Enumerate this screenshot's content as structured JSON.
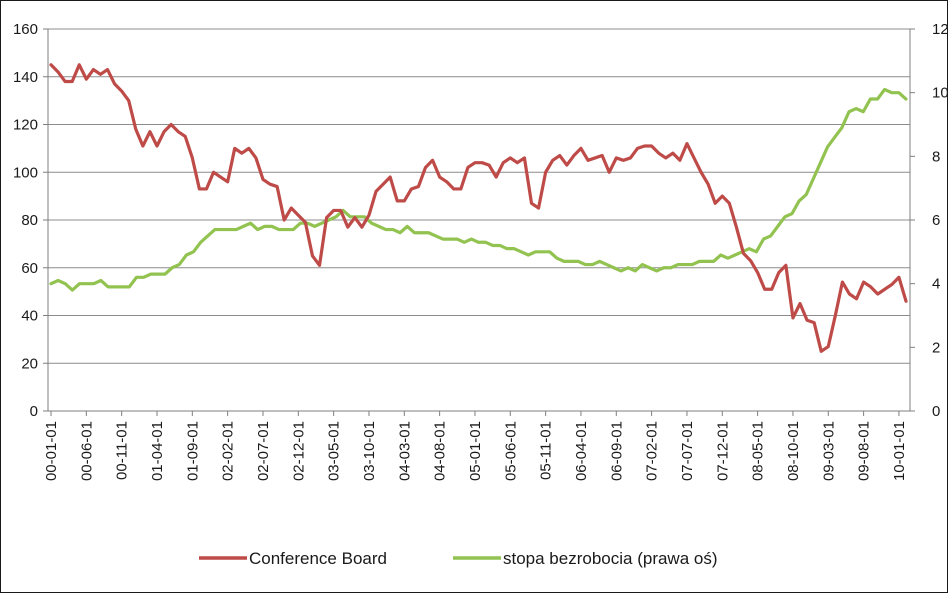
{
  "chart_data": {
    "type": "line",
    "title": "",
    "xlabel": "",
    "ylabel": "",
    "y2label": "",
    "ylim": [
      0,
      160
    ],
    "y2lim": [
      0,
      12
    ],
    "y_ticks": [
      "0",
      "20",
      "40",
      "60",
      "80",
      "100",
      "120",
      "140",
      "160"
    ],
    "y2_ticks": [
      "0",
      "2",
      "4",
      "6",
      "8",
      "10",
      "12"
    ],
    "x_tick_labels": [
      "00-01-01",
      "00-06-01",
      "00-11-01",
      "01-04-01",
      "01-09-01",
      "02-02-01",
      "02-07-01",
      "02-12-01",
      "03-05-01",
      "03-10-01",
      "04-03-01",
      "04-08-01",
      "05-01-01",
      "05-06-01",
      "05-11-01",
      "06-04-01",
      "06-09-01",
      "07-02-01",
      "07-07-01",
      "07-12-01",
      "08-05-01",
      "08-10-01",
      "09-03-01",
      "09-08-01",
      "10-01-01"
    ],
    "x_start": "2000-01",
    "x_end": "2010-02",
    "grid": true,
    "legend_position": "bottom",
    "series": [
      {
        "name": "Conference Board",
        "axis": "left",
        "color": "#be4b48",
        "values": [
          145,
          142,
          138,
          138,
          145,
          139,
          143,
          141,
          143,
          137,
          134,
          130,
          118,
          111,
          117,
          111,
          117,
          120,
          117,
          115,
          106,
          93,
          93,
          100,
          98,
          96,
          110,
          108,
          110,
          106,
          97,
          95,
          94,
          80,
          85,
          82,
          79,
          65,
          61,
          81,
          84,
          84,
          77,
          81,
          77,
          82,
          92,
          95,
          98,
          88,
          88,
          93,
          94,
          102,
          105,
          98,
          96,
          93,
          93,
          102,
          104,
          104,
          103,
          98,
          104,
          106,
          104,
          106,
          87,
          85,
          100,
          105,
          107,
          103,
          107,
          110,
          105,
          106,
          107,
          100,
          106,
          105,
          106,
          110,
          111,
          111,
          108,
          106,
          108,
          105,
          112,
          106,
          100,
          95,
          87,
          90,
          87,
          77,
          66,
          63,
          58,
          51,
          51,
          58,
          61,
          39,
          45,
          38,
          37,
          25,
          27,
          40,
          54,
          49,
          47,
          54,
          52,
          49,
          51,
          53,
          56,
          46
        ]
      },
      {
        "name": "stopa bezrobocia (prawa oś)",
        "axis": "right",
        "color": "#92c350",
        "values": [
          4.0,
          4.1,
          4.0,
          3.8,
          4.0,
          4.0,
          4.0,
          4.1,
          3.9,
          3.9,
          3.9,
          3.9,
          4.2,
          4.2,
          4.3,
          4.3,
          4.3,
          4.5,
          4.6,
          4.9,
          5.0,
          5.3,
          5.5,
          5.7,
          5.7,
          5.7,
          5.7,
          5.8,
          5.9,
          5.7,
          5.8,
          5.8,
          5.7,
          5.7,
          5.7,
          5.9,
          5.9,
          5.8,
          5.9,
          6.0,
          6.1,
          6.3,
          6.1,
          6.1,
          6.1,
          5.9,
          5.8,
          5.7,
          5.7,
          5.6,
          5.8,
          5.6,
          5.6,
          5.6,
          5.5,
          5.4,
          5.4,
          5.4,
          5.3,
          5.4,
          5.3,
          5.3,
          5.2,
          5.2,
          5.1,
          5.1,
          5.0,
          4.9,
          5.0,
          5.0,
          5.0,
          4.8,
          4.7,
          4.7,
          4.7,
          4.6,
          4.6,
          4.7,
          4.6,
          4.5,
          4.4,
          4.5,
          4.4,
          4.6,
          4.5,
          4.4,
          4.5,
          4.5,
          4.6,
          4.6,
          4.6,
          4.7,
          4.7,
          4.7,
          4.9,
          4.8,
          4.9,
          5.0,
          5.1,
          5.0,
          5.4,
          5.5,
          5.8,
          6.1,
          6.2,
          6.6,
          6.8,
          7.3,
          7.8,
          8.3,
          8.6,
          8.9,
          9.4,
          9.5,
          9.4,
          9.8,
          9.8,
          10.1,
          10.0,
          10.0,
          9.8
        ]
      }
    ]
  }
}
